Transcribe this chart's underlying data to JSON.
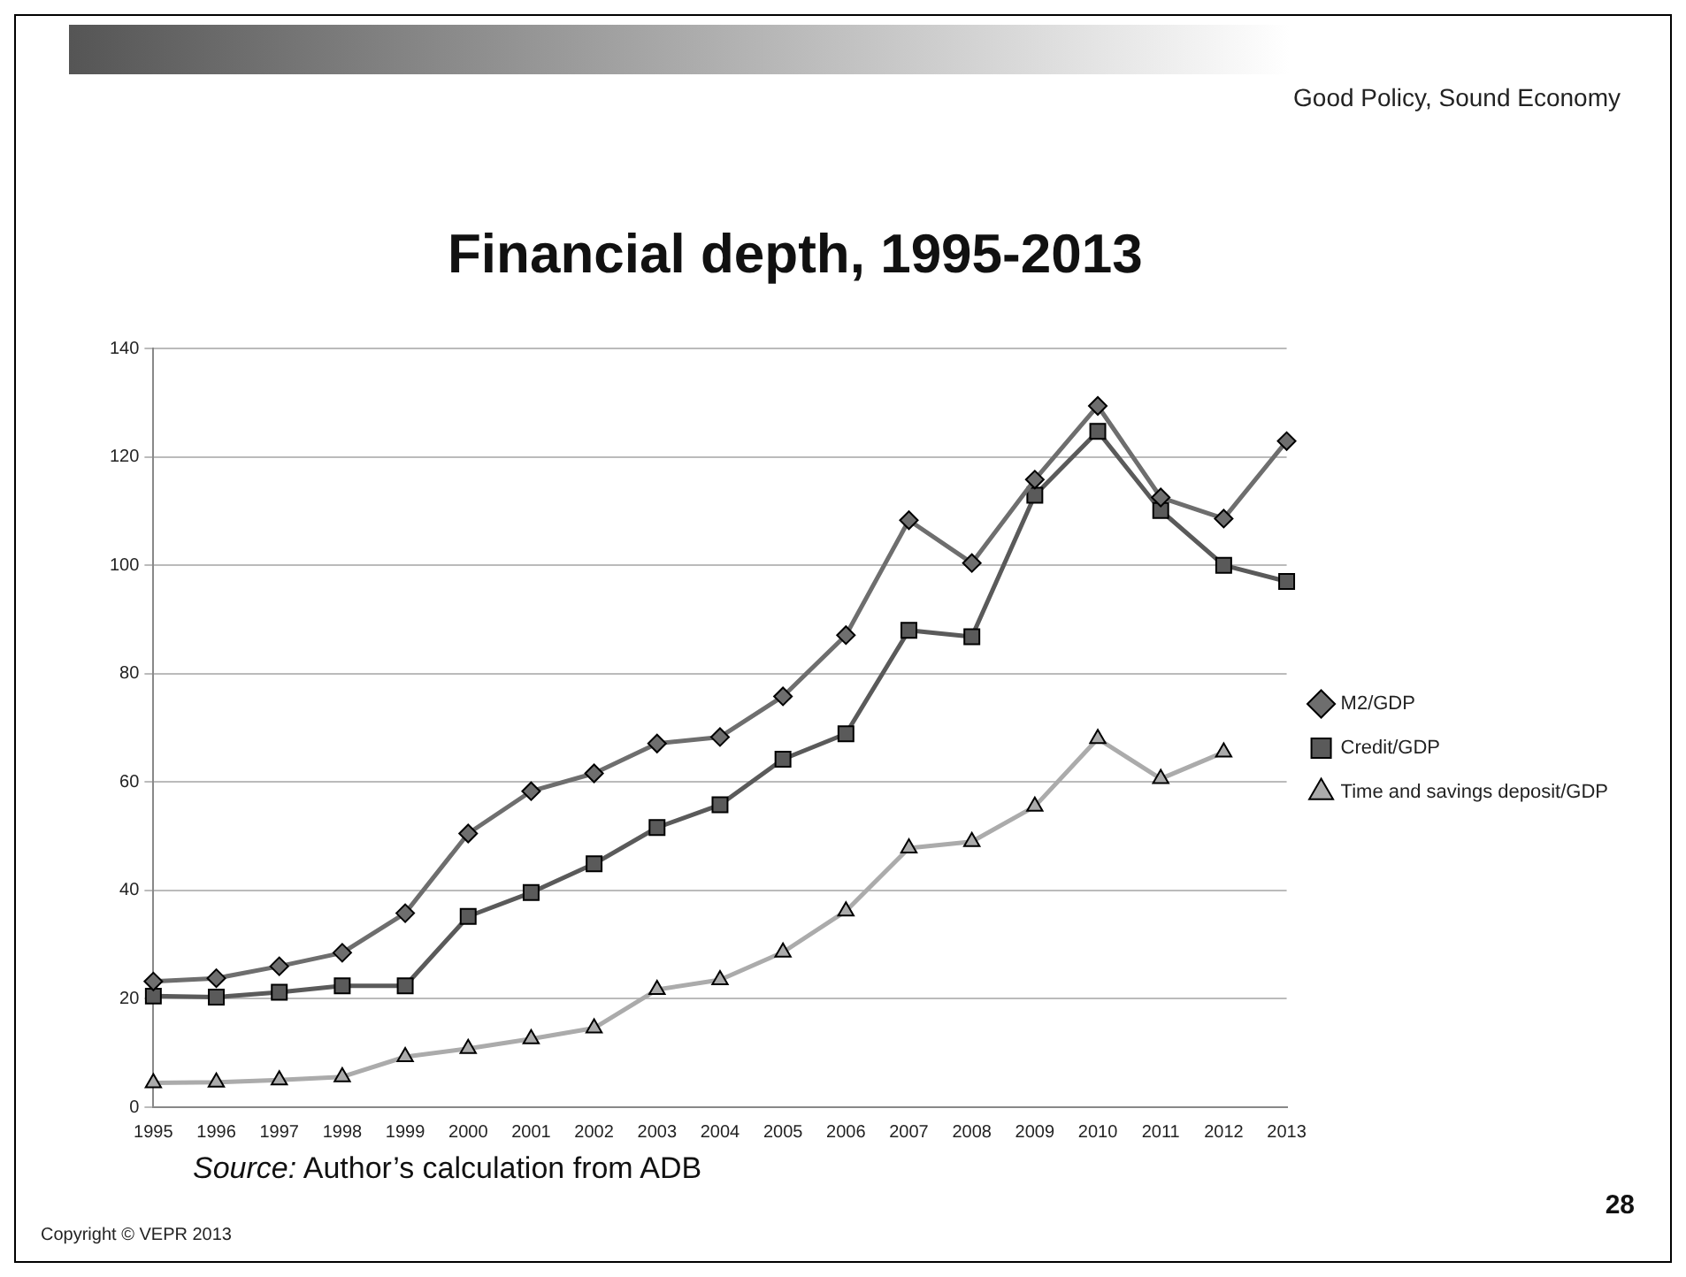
{
  "chart_data": {
    "type": "line",
    "title": "Financial depth, 1995-2013",
    "subtitle": "Good Policy, Sound Economy",
    "categories": [
      "1995",
      "1996",
      "1997",
      "1998",
      "1999",
      "2000",
      "2001",
      "2002",
      "2003",
      "2004",
      "2005",
      "2006",
      "2007",
      "2008",
      "2009",
      "2010",
      "2011",
      "2012",
      "2013"
    ],
    "series": [
      {
        "name": "M2/GDP",
        "color": "#6e6e6e",
        "marker": "diamond",
        "values": [
          23.2,
          23.8,
          26,
          28.5,
          35.8,
          50.5,
          58.3,
          61.6,
          67.1,
          68.3,
          75.8,
          87.1,
          108.3,
          100.4,
          115.8,
          129.4,
          112.5,
          108.6,
          122.9
        ]
      },
      {
        "name": "Credit/GDP",
        "color": "#5a5a5a",
        "marker": "square",
        "values": [
          20.5,
          20.3,
          21.2,
          22.4,
          22.4,
          35.2,
          39.6,
          44.9,
          51.6,
          55.8,
          64.2,
          68.9,
          88,
          86.8,
          112.9,
          124.7,
          110.1,
          100,
          97
        ]
      },
      {
        "name": "Time and savings deposit/GDP",
        "color": "#ababab",
        "marker": "triangle",
        "values": [
          4.5,
          4.6,
          5,
          5.6,
          9.3,
          10.8,
          12.6,
          14.6,
          21.7,
          23.5,
          28.6,
          36.2,
          47.8,
          49,
          55.5,
          68,
          60.6,
          65.5,
          null
        ]
      }
    ],
    "ylim": [
      0,
      140
    ],
    "yticks": [
      0,
      20,
      40,
      60,
      80,
      100,
      120,
      140
    ],
    "grid": "y",
    "legend": "right",
    "line_style": "solid",
    "annotations": [
      "Source: Author’s calculation from ADB",
      "Copyright © VEPR 2013",
      "28"
    ]
  }
}
